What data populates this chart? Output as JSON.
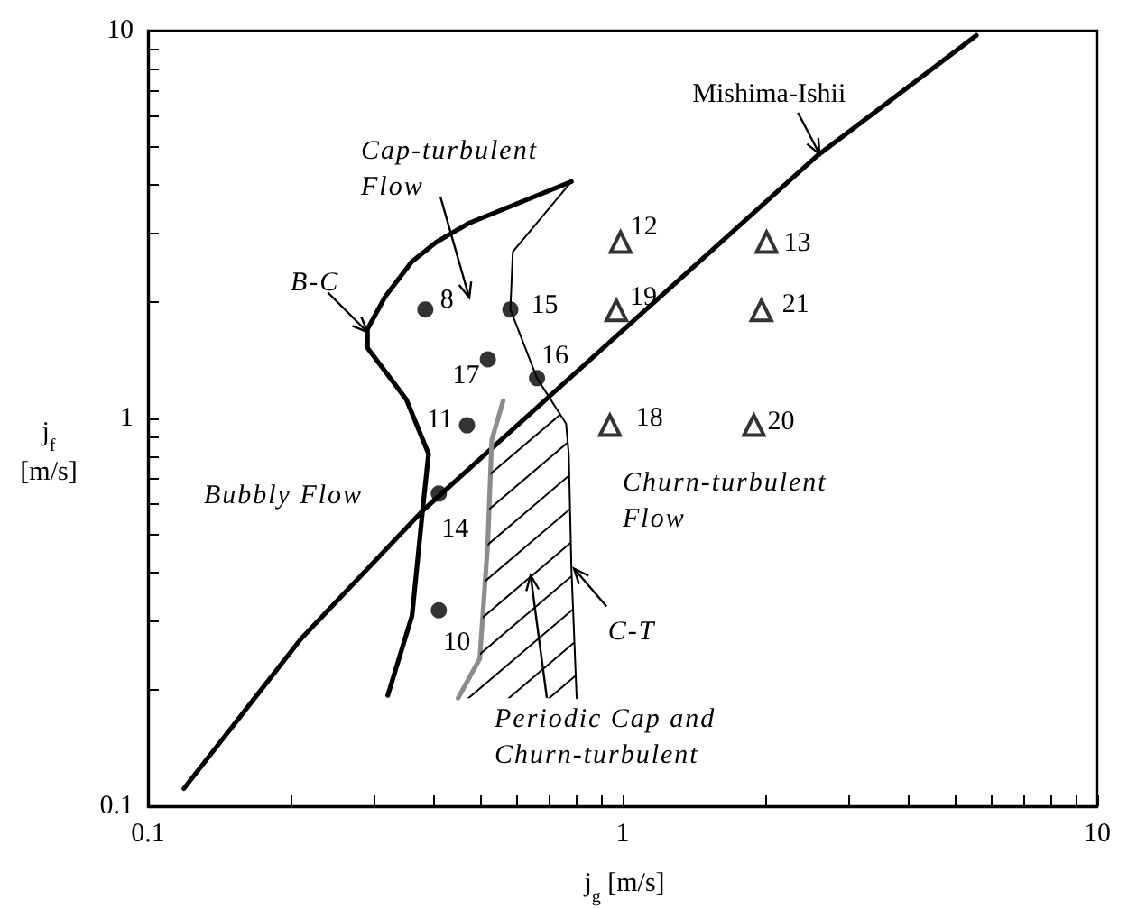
{
  "chart_data": {
    "type": "line",
    "xlabel": "j$_{g}$ [m/s]",
    "ylabel": "j$_{f}$ [m/s]",
    "log": "xy",
    "xlim": [
      0.1,
      10
    ],
    "ylim": [
      0.1,
      10
    ],
    "xticks": [
      0.1,
      {
        "value": 0.2,
        "label": null
      },
      {
        "value": 0.3,
        "label": null
      },
      {
        "value": 0.4,
        "label": null
      },
      {
        "value": 0.5,
        "label": null
      },
      {
        "value": 0.6,
        "label": null
      },
      {
        "value": 0.7,
        "label": null
      },
      {
        "value": 0.8,
        "label": null
      },
      {
        "value": 0.9,
        "label": null
      },
      1,
      {
        "value": 2,
        "label": null
      },
      {
        "value": 3,
        "label": null
      },
      {
        "value": 4,
        "label": null
      },
      {
        "value": 5,
        "label": null
      },
      {
        "value": 6,
        "label": null
      },
      {
        "value": 7,
        "label": null
      },
      {
        "value": 8,
        "label": null
      },
      {
        "value": 9,
        "label": null
      },
      10
    ],
    "yticks": [
      0.1,
      {
        "value": 0.2,
        "label": null
      },
      {
        "value": 0.3,
        "label": null
      },
      {
        "value": 0.4,
        "label": null
      },
      {
        "value": 0.5,
        "label": null
      },
      {
        "value": 0.6,
        "label": null
      },
      {
        "value": 0.7,
        "label": null
      },
      {
        "value": 0.8,
        "label": null
      },
      {
        "value": 0.9,
        "label": null
      },
      1,
      {
        "value": 2,
        "label": null
      },
      {
        "value": 3,
        "label": null
      },
      {
        "value": 4,
        "label": null
      },
      {
        "value": 5,
        "label": null
      },
      {
        "value": 6,
        "label": null
      },
      {
        "value": 7,
        "label": null
      },
      {
        "value": 8,
        "label": null
      },
      {
        "value": 9,
        "label": null
      },
      10
    ],
    "grid": false,
    "marker": "none",
    "series": [
      {
        "color": "#000000",
        "x": [
          0.119,
          0.21,
          0.38,
          0.74,
          2.57,
          5.56
        ],
        "values": [
          0.111,
          0.27,
          0.58,
          1.21,
          4.76,
          9.72
        ]
      },
      {
        "color": "#000000",
        "x": [
          0.32,
          0.36,
          0.38,
          0.39,
          0.35,
          0.29,
          0.29,
          0.316,
          0.36,
          0.405,
          0.475,
          0.78
        ],
        "values": [
          0.193,
          0.31,
          0.6,
          0.81,
          1.12,
          1.52,
          1.7,
          2.06,
          2.54,
          2.85,
          3.19,
          4.08
        ]
      },
      {
        "color": "#8c8c8c",
        "x": [
          0.45,
          0.5,
          0.52,
          0.53,
          0.56
        ],
        "values": [
          0.19,
          0.24,
          0.48,
          0.88,
          1.11
        ]
      },
      {
        "color": "#000000",
        "x": [
          0.78,
          0.587,
          0.58,
          0.66,
          0.76,
          0.77,
          0.78,
          0.8
        ],
        "values": [
          4.08,
          2.69,
          1.91,
          1.27,
          0.97,
          0.81,
          0.41,
          0.19
        ]
      },
      {
        "type": "scatter",
        "marker": "circle",
        "color": "#000000",
        "x": [
          0.384,
          0.58,
          0.52,
          0.66,
          0.47,
          0.41,
          0.41
        ],
        "values": [
          1.91,
          1.91,
          1.42,
          1.27,
          0.96,
          0.64,
          0.32
        ]
      },
      {
        "type": "scatter",
        "marker": "triangle",
        "color": "#000000",
        "x": [
          0.99,
          2.01,
          0.97,
          1.96,
          0.94,
          1.89
        ],
        "values": [
          2.85,
          2.85,
          1.9,
          1.9,
          0.96,
          0.96
        ]
      }
    ],
    "annotations": [
      {
        "text": "Mishima-Ishii",
        "x": 2.6,
        "y": 4.8
      },
      {
        "text": "B-C",
        "x": 0.29,
        "y": 1.67
      },
      "Cap-turbulent Flow",
      "Bubbly Flow",
      "Churn-turbulent Flow",
      {
        "text": "C-T",
        "x": 0.79,
        "y": 0.41
      },
      "Periodic Cap and Churn-turbulent",
      {
        "text": "8",
        "x": 0.384,
        "y": 1.91
      },
      {
        "text": "15",
        "x": 0.58,
        "y": 1.91
      },
      {
        "text": "17",
        "x": 0.52,
        "y": 1.42
      },
      {
        "text": "16",
        "x": 0.66,
        "y": 1.27
      },
      {
        "text": "11",
        "x": 0.47,
        "y": 0.96
      },
      {
        "text": "14",
        "x": 0.41,
        "y": 0.64
      },
      {
        "text": "10",
        "x": 0.41,
        "y": 0.32
      },
      {
        "text": "12",
        "x": 0.99,
        "y": 2.85
      },
      {
        "text": "13",
        "x": 2.01,
        "y": 2.85
      },
      {
        "text": "19",
        "x": 0.97,
        "y": 1.9
      },
      {
        "text": "21",
        "x": 1.96,
        "y": 1.9
      },
      {
        "text": "18",
        "x": 0.94,
        "y": 0.96
      },
      {
        "text": "20",
        "x": 1.89,
        "y": 0.96
      }
    ]
  }
}
